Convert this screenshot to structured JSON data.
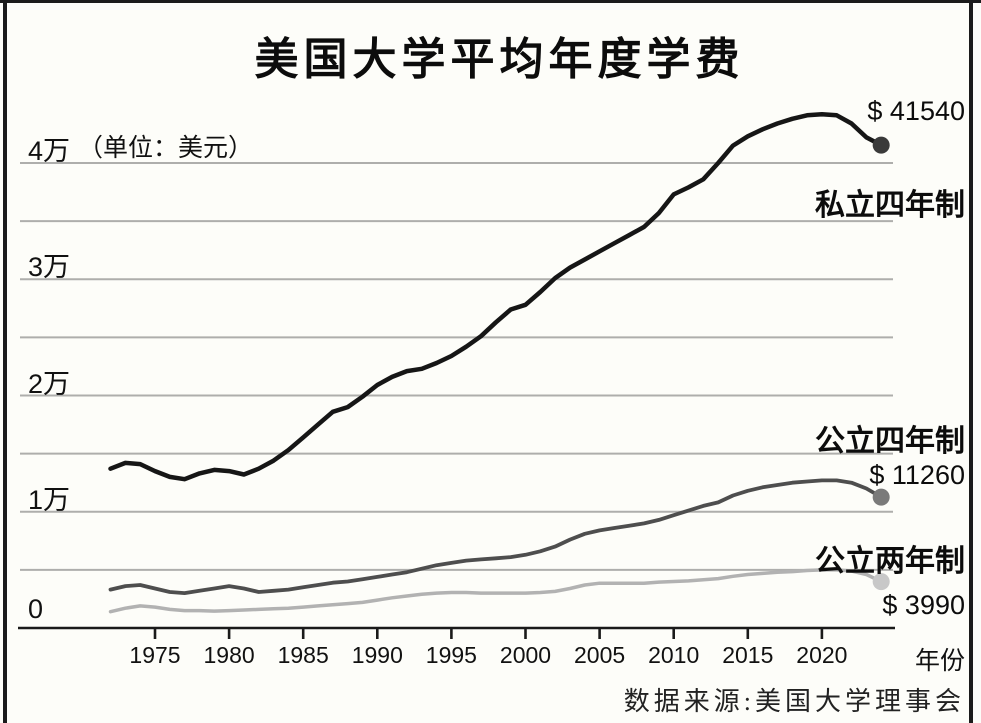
{
  "title": "美国大学平均年度学费",
  "chart_data": {
    "type": "line",
    "title": "美国大学平均年度学费",
    "unit_note": "（单位：美元）",
    "x_label": "年份",
    "source": "数据来源:美国大学理事会",
    "x_ticks": [
      1975,
      1980,
      1985,
      1990,
      1995,
      2000,
      2005,
      2010,
      2015,
      2020
    ],
    "y_ticks": [
      {
        "label": "0",
        "value": 0
      },
      {
        "label": "1万",
        "value": 10000
      },
      {
        "label": "2万",
        "value": 20000
      },
      {
        "label": "3万",
        "value": 30000
      },
      {
        "label": "4万",
        "value": 40000
      }
    ],
    "y_gridline_step": 5000,
    "ylim": [
      0,
      46000
    ],
    "xlim": [
      1971.5,
      2025
    ],
    "grid": "horizontal-only",
    "legend_position": "right-annotations",
    "years": [
      1972,
      1973,
      1974,
      1975,
      1976,
      1977,
      1978,
      1979,
      1980,
      1981,
      1982,
      1983,
      1984,
      1985,
      1986,
      1987,
      1988,
      1989,
      1990,
      1991,
      1992,
      1993,
      1994,
      1995,
      1996,
      1997,
      1998,
      1999,
      2000,
      2001,
      2002,
      2003,
      2004,
      2005,
      2006,
      2007,
      2008,
      2009,
      2010,
      2011,
      2012,
      2013,
      2014,
      2015,
      2016,
      2017,
      2018,
      2019,
      2020,
      2021,
      2022,
      2023,
      2024
    ],
    "series": [
      {
        "name": "私立四年制",
        "end_label": "$ 41540",
        "end_value": 41540,
        "color": "#161616",
        "dot_color": "#3a3a3a",
        "stroke_width": 4.5,
        "values": [
          13700,
          14200,
          14100,
          13500,
          13000,
          12800,
          13300,
          13600,
          13500,
          13200,
          13700,
          14400,
          15300,
          16400,
          17500,
          18600,
          19000,
          19900,
          20900,
          21600,
          22100,
          22300,
          22800,
          23400,
          24200,
          25100,
          26300,
          27400,
          27800,
          28900,
          30100,
          31000,
          31700,
          32400,
          33100,
          33800,
          34500,
          35700,
          37300,
          37900,
          38600,
          40000,
          41500,
          42300,
          42900,
          43400,
          43800,
          44100,
          44200,
          44100,
          43400,
          42200,
          41540
        ]
      },
      {
        "name": "公立四年制",
        "end_label": "$ 11260",
        "end_value": 11260,
        "color": "#4e4e4e",
        "dot_color": "#7a7a7a",
        "stroke_width": 3.8,
        "values": [
          3300,
          3600,
          3700,
          3400,
          3100,
          3000,
          3200,
          3400,
          3600,
          3400,
          3100,
          3200,
          3300,
          3500,
          3700,
          3900,
          4000,
          4200,
          4400,
          4600,
          4800,
          5100,
          5400,
          5600,
          5800,
          5900,
          6000,
          6100,
          6300,
          6600,
          7000,
          7600,
          8100,
          8400,
          8600,
          8800,
          9000,
          9300,
          9700,
          10100,
          10500,
          10800,
          11400,
          11800,
          12100,
          12300,
          12500,
          12600,
          12700,
          12700,
          12500,
          12000,
          11260
        ]
      },
      {
        "name": "公立两年制",
        "end_label": "$ 3990",
        "end_value": 3990,
        "color": "#b2b2b2",
        "dot_color": "#c8c8c8",
        "stroke_width": 3.5,
        "values": [
          1400,
          1700,
          1900,
          1800,
          1600,
          1500,
          1500,
          1450,
          1500,
          1550,
          1600,
          1650,
          1700,
          1800,
          1900,
          2000,
          2100,
          2200,
          2400,
          2600,
          2750,
          2900,
          3000,
          3050,
          3050,
          3000,
          3000,
          3000,
          3000,
          3050,
          3150,
          3400,
          3700,
          3850,
          3850,
          3850,
          3850,
          3950,
          4000,
          4050,
          4150,
          4250,
          4450,
          4600,
          4700,
          4800,
          4850,
          4950,
          5000,
          5000,
          4900,
          4600,
          3990
        ]
      }
    ],
    "colors": {
      "gridline": "#aeaeac",
      "axis": "#1a1a1a",
      "background": "#fdfdf9",
      "frame_border": "#1b1b1b"
    }
  }
}
